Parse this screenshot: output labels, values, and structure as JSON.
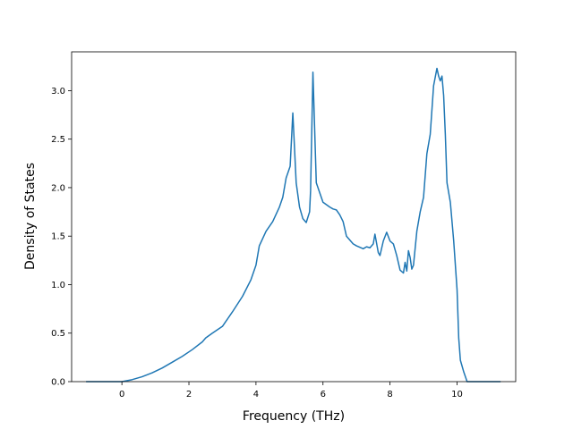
{
  "chart_data": {
    "type": "line",
    "title": "",
    "xlabel": "Frequency (THz)",
    "ylabel": "Density of States",
    "xlim": [
      -1.5,
      11.75
    ],
    "ylim": [
      0,
      3.4
    ],
    "xticks": [
      0,
      2,
      4,
      6,
      8,
      10
    ],
    "yticks": [
      0.0,
      0.5,
      1.0,
      1.5,
      2.0,
      2.5,
      3.0
    ],
    "xtick_labels": [
      "0",
      "2",
      "4",
      "6",
      "8",
      "10"
    ],
    "ytick_labels": [
      "0.0",
      "0.5",
      "1.0",
      "1.5",
      "2.0",
      "2.5",
      "3.0"
    ],
    "grid": false,
    "legend": "none",
    "color": "#1f77b4",
    "series": [
      {
        "x": [
          -1.07,
          0.0,
          0.3,
          0.6,
          0.9,
          1.2,
          1.5,
          1.8,
          2.1,
          2.4,
          2.5,
          2.7,
          3.0,
          3.1,
          3.3,
          3.6,
          3.85,
          4.0,
          4.1,
          4.3,
          4.5,
          4.7,
          4.8,
          4.9,
          5.0,
          5.02,
          5.1,
          5.2,
          5.3,
          5.4,
          5.5,
          5.6,
          5.63,
          5.7,
          5.8,
          5.9,
          6.0,
          6.2,
          6.3,
          6.4,
          6.5,
          6.6,
          6.7,
          6.9,
          7.0,
          7.2,
          7.3,
          7.4,
          7.5,
          7.55,
          7.65,
          7.7,
          7.8,
          7.9,
          8.0,
          8.1,
          8.2,
          8.3,
          8.4,
          8.45,
          8.5,
          8.55,
          8.6,
          8.65,
          8.7,
          8.8,
          8.85,
          8.9,
          9.0,
          9.1,
          9.2,
          9.3,
          9.4,
          9.45,
          9.5,
          9.55,
          9.6,
          9.65,
          9.7,
          9.8,
          9.9,
          10.0,
          10.05,
          10.1,
          10.2,
          10.3,
          10.5,
          11.3
        ],
        "y": [
          0.0,
          0.0,
          0.02,
          0.05,
          0.09,
          0.14,
          0.2,
          0.26,
          0.33,
          0.41,
          0.45,
          0.5,
          0.57,
          0.62,
          0.72,
          0.88,
          1.05,
          1.2,
          1.4,
          1.55,
          1.65,
          1.8,
          1.9,
          2.1,
          2.2,
          2.22,
          2.77,
          2.05,
          1.8,
          1.68,
          1.64,
          1.75,
          1.97,
          3.19,
          2.05,
          1.95,
          1.85,
          1.8,
          1.78,
          1.77,
          1.72,
          1.65,
          1.5,
          1.42,
          1.4,
          1.37,
          1.39,
          1.38,
          1.42,
          1.52,
          1.33,
          1.3,
          1.45,
          1.54,
          1.45,
          1.42,
          1.3,
          1.15,
          1.12,
          1.23,
          1.14,
          1.35,
          1.28,
          1.16,
          1.2,
          1.55,
          1.65,
          1.75,
          1.9,
          2.35,
          2.55,
          3.05,
          3.23,
          3.15,
          3.1,
          3.15,
          2.95,
          2.55,
          2.05,
          1.85,
          1.45,
          0.95,
          0.45,
          0.22,
          0.1,
          0.0,
          0.0,
          0.0
        ]
      }
    ]
  }
}
